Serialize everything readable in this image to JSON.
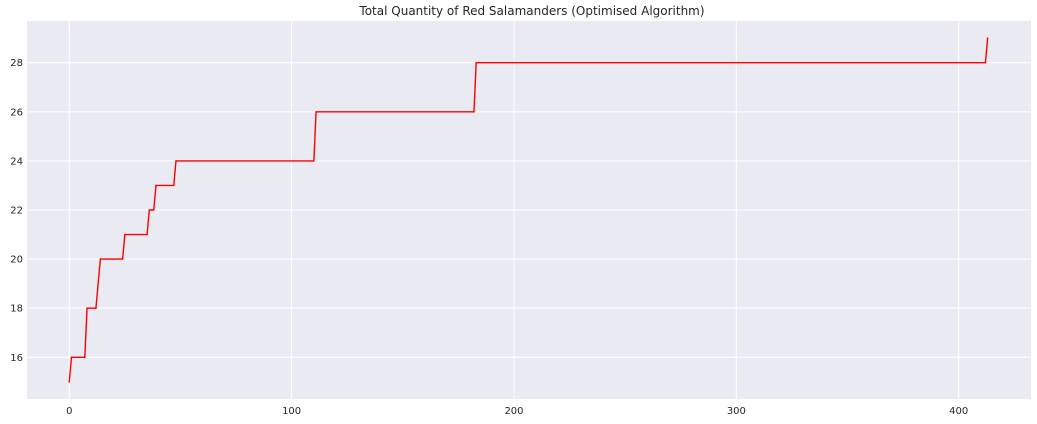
{
  "chart_data": {
    "type": "line",
    "title": "Total Quantity of Red Salamanders (Optimised Algorithm)",
    "xlabel": "",
    "ylabel": "",
    "xlim": [
      -19,
      432.5
    ],
    "ylim": [
      14.3,
      29.7
    ],
    "xticks": [
      0,
      100,
      200,
      300,
      400
    ],
    "yticks": [
      16,
      18,
      20,
      22,
      24,
      26,
      28
    ],
    "grid": true,
    "legend": "none",
    "series": [
      {
        "color": "#ff0000",
        "x": [
          0,
          1,
          7,
          8,
          12,
          14,
          24,
          25,
          35,
          36,
          38,
          39,
          47,
          48,
          110,
          111,
          182,
          183,
          412,
          413
        ],
        "y": [
          15,
          16,
          16,
          18,
          18,
          20,
          20,
          21,
          21,
          22,
          22,
          23,
          23,
          24,
          24,
          26,
          26,
          28,
          28,
          29
        ]
      }
    ]
  },
  "style": {
    "background": "#eaeaf2",
    "grid_color": "#ffffff",
    "line_color": "#ff0000"
  }
}
